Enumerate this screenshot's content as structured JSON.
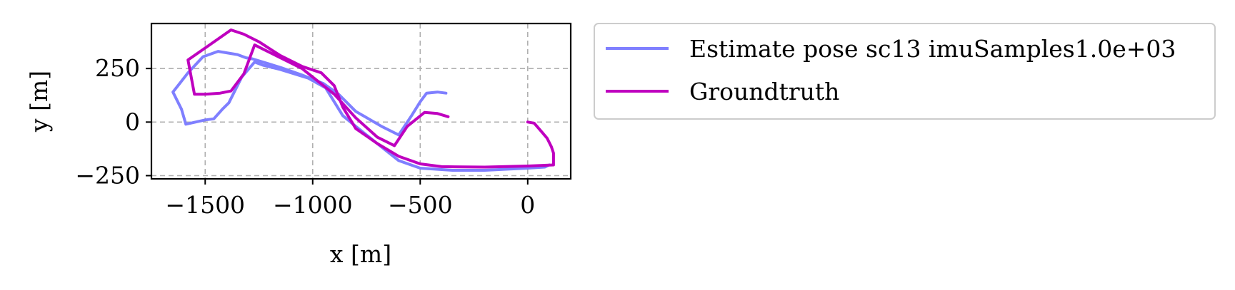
{
  "chart_data": {
    "type": "line",
    "xlabel": "x [m]",
    "ylabel": "y [m]",
    "xlim": [
      -1750,
      200
    ],
    "ylim": [
      -265,
      460
    ],
    "xticks": [
      -1500,
      -1000,
      -500,
      0
    ],
    "xtick_labels": [
      "−1500",
      "−1000",
      "−500",
      "0"
    ],
    "yticks": [
      -250,
      0,
      250
    ],
    "ytick_labels": [
      "−250",
      "0",
      "250"
    ],
    "grid": true,
    "legend_position": "outside-right",
    "series": [
      {
        "name": "Estimate pose sc13 imuSamples1.0e+03",
        "color": "#7f7fff",
        "points": [
          [
            -380,
            135
          ],
          [
            -420,
            140
          ],
          [
            -470,
            135
          ],
          [
            -500,
            95
          ],
          [
            -540,
            30
          ],
          [
            -600,
            -60
          ],
          [
            -680,
            -20
          ],
          [
            -800,
            50
          ],
          [
            -880,
            130
          ],
          [
            -950,
            180
          ],
          [
            -1050,
            220
          ],
          [
            -1150,
            255
          ],
          [
            -1280,
            295
          ],
          [
            -1310,
            300
          ],
          [
            -1350,
            315
          ],
          [
            -1440,
            330
          ],
          [
            -1510,
            305
          ],
          [
            -1580,
            230
          ],
          [
            -1650,
            140
          ],
          [
            -1610,
            60
          ],
          [
            -1590,
            -10
          ],
          [
            -1500,
            10
          ],
          [
            -1460,
            15
          ],
          [
            -1420,
            60
          ],
          [
            -1390,
            90
          ],
          [
            -1330,
            210
          ],
          [
            -1270,
            280
          ],
          [
            -1230,
            265
          ],
          [
            -1150,
            245
          ],
          [
            -1020,
            205
          ],
          [
            -940,
            160
          ],
          [
            -860,
            30
          ],
          [
            -800,
            -20
          ],
          [
            -700,
            -100
          ],
          [
            -600,
            -180
          ],
          [
            -500,
            -215
          ],
          [
            -350,
            -225
          ],
          [
            -200,
            -225
          ],
          [
            0,
            -215
          ],
          [
            80,
            -210
          ],
          [
            100,
            -200
          ]
        ]
      },
      {
        "name": "Groundtruth",
        "color": "#bf00bf",
        "points": [
          [
            0,
            0
          ],
          [
            30,
            -5
          ],
          [
            60,
            -40
          ],
          [
            90,
            -75
          ],
          [
            110,
            -115
          ],
          [
            120,
            -145
          ],
          [
            120,
            -200
          ],
          [
            0,
            -205
          ],
          [
            -200,
            -210
          ],
          [
            -400,
            -208
          ],
          [
            -500,
            -195
          ],
          [
            -600,
            -160
          ],
          [
            -700,
            -100
          ],
          [
            -800,
            -30
          ],
          [
            -860,
            70
          ],
          [
            -900,
            170
          ],
          [
            -960,
            230
          ],
          [
            -1050,
            260
          ],
          [
            -1150,
            310
          ],
          [
            -1250,
            375
          ],
          [
            -1320,
            410
          ],
          [
            -1380,
            430
          ],
          [
            -1480,
            360
          ],
          [
            -1580,
            290
          ],
          [
            -1550,
            130
          ],
          [
            -1500,
            130
          ],
          [
            -1430,
            135
          ],
          [
            -1380,
            145
          ],
          [
            -1320,
            225
          ],
          [
            -1270,
            360
          ],
          [
            -1240,
            345
          ],
          [
            -1150,
            300
          ],
          [
            -1050,
            250
          ],
          [
            -900,
            130
          ],
          [
            -800,
            20
          ],
          [
            -700,
            -70
          ],
          [
            -620,
            -110
          ],
          [
            -560,
            -20
          ],
          [
            -480,
            45
          ],
          [
            -420,
            40
          ],
          [
            -370,
            25
          ]
        ]
      }
    ]
  }
}
